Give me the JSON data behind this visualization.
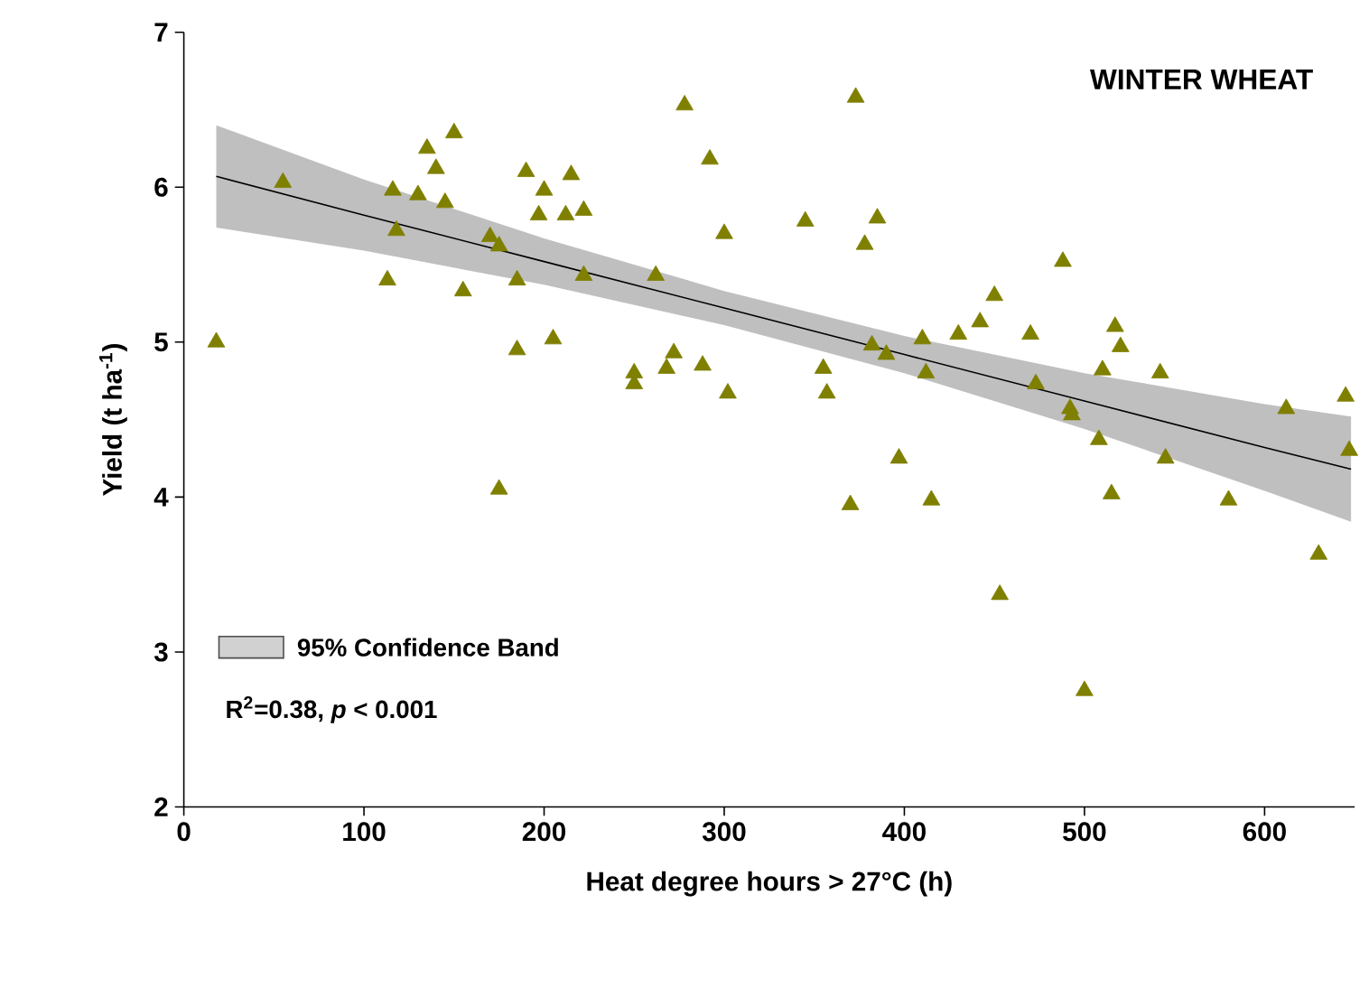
{
  "chart_data": {
    "type": "scatter",
    "title": "WINTER WHEAT",
    "xlabel": "Heat degree hours > 27°C (h)",
    "ylabel": "Yield (t ha$^{-1}$)",
    "xlim": [
      0,
      650
    ],
    "xticks": [
      0,
      100,
      200,
      300,
      400,
      500,
      600
    ],
    "ylim": [
      2,
      7
    ],
    "yticks": [
      2,
      3,
      4,
      5,
      6,
      7
    ],
    "grid": false,
    "legend": "bottom left",
    "series": [
      {
        "color": "#7f7f00",
        "marker": "triangle",
        "x": [
          18,
          55,
          113,
          116,
          118,
          130,
          135,
          140,
          145,
          150,
          155,
          170,
          175,
          175,
          185,
          185,
          190,
          197,
          200,
          205,
          212,
          215,
          222,
          222,
          250,
          250,
          262,
          268,
          272,
          278,
          288,
          292,
          300,
          302,
          345,
          355,
          357,
          370,
          373,
          378,
          382,
          385,
          390,
          397,
          410,
          412,
          415,
          430,
          442,
          450,
          453,
          470,
          473,
          488,
          492,
          493,
          500,
          508,
          510,
          515,
          517,
          520,
          542,
          545,
          580,
          612,
          630,
          645,
          647
        ],
        "values": [
          5.0,
          6.03,
          5.4,
          5.98,
          5.72,
          5.95,
          6.25,
          6.12,
          5.9,
          6.35,
          5.33,
          5.68,
          5.62,
          4.05,
          4.95,
          5.4,
          6.1,
          5.82,
          5.98,
          5.02,
          5.82,
          6.08,
          5.85,
          5.43,
          4.8,
          4.73,
          5.43,
          4.83,
          4.93,
          6.53,
          4.85,
          6.18,
          5.7,
          4.67,
          5.78,
          4.83,
          4.67,
          3.95,
          6.58,
          5.63,
          4.98,
          5.8,
          4.92,
          4.25,
          5.02,
          4.8,
          3.98,
          5.05,
          5.13,
          5.3,
          3.37,
          5.05,
          4.73,
          5.52,
          4.57,
          4.53,
          2.75,
          4.37,
          4.82,
          4.02,
          5.1,
          4.97,
          4.8,
          4.25,
          3.98,
          4.57,
          3.63,
          4.65,
          4.3
        ]
      },
      {
        "type": "line",
        "name": "95% Confidence Band",
        "color": "#000000",
        "x": [
          18,
          100,
          200,
          300,
          400,
          500,
          600,
          648
        ],
        "values": [
          6.07,
          5.82,
          5.52,
          5.22,
          4.92,
          4.62,
          4.32,
          4.18
        ],
        "lower": [
          5.74,
          5.59,
          5.37,
          5.11,
          4.8,
          4.44,
          4.04,
          3.84
        ],
        "upper": [
          6.4,
          6.05,
          5.67,
          5.33,
          5.04,
          4.8,
          4.6,
          4.52
        ]
      }
    ],
    "annotations": [
      "R$^{2}$=0.38, *p* < 0.001"
    ]
  }
}
